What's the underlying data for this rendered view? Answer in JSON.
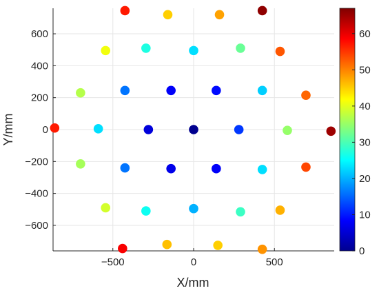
{
  "chart_data": {
    "type": "scatter",
    "title": "",
    "xlabel": "X/mm",
    "ylabel": "Y/mm",
    "xlim": [
      -870,
      870
    ],
    "ylim": [
      -760,
      760
    ],
    "x_ticks": [
      -500,
      0,
      500
    ],
    "x_tick_labels": [
      "−500",
      "0",
      "500"
    ],
    "y_ticks": [
      -600,
      -400,
      -200,
      0,
      200,
      400,
      600
    ],
    "y_tick_labels": [
      "−600",
      "−400",
      "−200",
      "0",
      "200",
      "400",
      "600"
    ],
    "grid": true,
    "colormap": "jet",
    "colorbar": {
      "range": [
        0,
        67
      ],
      "ticks": [
        0,
        10,
        20,
        30,
        40,
        50,
        60
      ],
      "tick_labels": [
        "0",
        "10",
        "20",
        "30",
        "40",
        "50",
        "60"
      ],
      "position": "right"
    },
    "points": [
      {
        "x": 0,
        "y": 0,
        "value": 1
      },
      {
        "x": -280,
        "y": 0,
        "value": 6
      },
      {
        "x": 280,
        "y": 0,
        "value": 12
      },
      {
        "x": -140,
        "y": 245,
        "value": 8
      },
      {
        "x": 140,
        "y": 245,
        "value": 9
      },
      {
        "x": -140,
        "y": -245,
        "value": 7
      },
      {
        "x": 140,
        "y": -245,
        "value": 8
      },
      {
        "x": -425,
        "y": 245,
        "value": 16
      },
      {
        "x": 425,
        "y": 245,
        "value": 22
      },
      {
        "x": -425,
        "y": -240,
        "value": 16
      },
      {
        "x": 425,
        "y": -250,
        "value": 23
      },
      {
        "x": -590,
        "y": 5,
        "value": 23
      },
      {
        "x": 580,
        "y": -5,
        "value": 35
      },
      {
        "x": 0,
        "y": 495,
        "value": 23
      },
      {
        "x": 0,
        "y": -495,
        "value": 20
      },
      {
        "x": -295,
        "y": 510,
        "value": 27
      },
      {
        "x": 290,
        "y": 510,
        "value": 32
      },
      {
        "x": -295,
        "y": -510,
        "value": 26
      },
      {
        "x": 290,
        "y": -515,
        "value": 29
      },
      {
        "x": -545,
        "y": 495,
        "value": 41
      },
      {
        "x": 535,
        "y": 490,
        "value": 53
      },
      {
        "x": -545,
        "y": -490,
        "value": 39
      },
      {
        "x": 535,
        "y": -505,
        "value": 47
      },
      {
        "x": -700,
        "y": 230,
        "value": 37
      },
      {
        "x": 695,
        "y": 215,
        "value": 52
      },
      {
        "x": -700,
        "y": -215,
        "value": 36
      },
      {
        "x": 695,
        "y": -235,
        "value": 54
      },
      {
        "x": -860,
        "y": 10,
        "value": 57
      },
      {
        "x": 850,
        "y": -10,
        "value": 65
      },
      {
        "x": -425,
        "y": 745,
        "value": 57
      },
      {
        "x": 425,
        "y": 745,
        "value": 66
      },
      {
        "x": -160,
        "y": 720,
        "value": 45
      },
      {
        "x": 160,
        "y": 720,
        "value": 48
      },
      {
        "x": -440,
        "y": -745,
        "value": 59
      },
      {
        "x": 425,
        "y": -750,
        "value": 49
      },
      {
        "x": -165,
        "y": -720,
        "value": 46
      },
      {
        "x": 150,
        "y": -725,
        "value": 45
      }
    ]
  }
}
